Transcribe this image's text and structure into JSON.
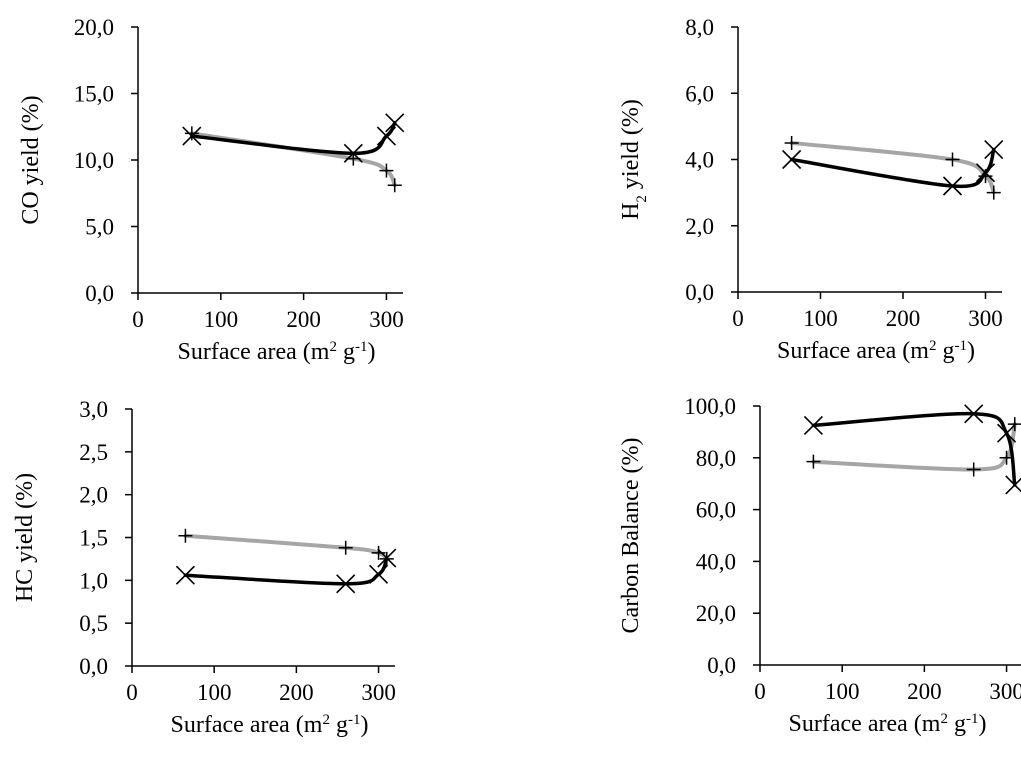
{
  "chart_data": [
    {
      "type": "scatter",
      "xlabel": "Surface area (m² g⁻¹)",
      "ylabel": "CO yield (%)",
      "xlim": [
        0,
        320
      ],
      "ylim": [
        0,
        20
      ],
      "x_ticks": [
        "0",
        "100",
        "200",
        "300"
      ],
      "y_ticks": [
        "0,0",
        "5,0",
        "10,0",
        "15,0",
        "20,0"
      ],
      "grid": false,
      "legend": "none",
      "series": [
        {
          "marker": "cross",
          "color": "#000000",
          "x": [
            65,
            260,
            300,
            310
          ],
          "y": [
            11.8,
            10.5,
            11.8,
            12.8
          ]
        },
        {
          "marker": "plus",
          "color": "#a6a6a6",
          "x": [
            65,
            260,
            300,
            310
          ],
          "y": [
            12.0,
            10.1,
            9.2,
            8.1
          ]
        }
      ]
    },
    {
      "type": "scatter",
      "xlabel": "Surface area (m² g⁻¹)",
      "ylabel": "H₂ yield (%)",
      "xlim": [
        0,
        320
      ],
      "ylim": [
        0,
        8
      ],
      "x_ticks": [
        "0",
        "100",
        "200",
        "300"
      ],
      "y_ticks": [
        "0,0",
        "2,0",
        "4,0",
        "6,0",
        "8,0"
      ],
      "grid": false,
      "legend": "none",
      "series": [
        {
          "marker": "cross",
          "color": "#000000",
          "x": [
            65,
            260,
            300,
            310
          ],
          "y": [
            4.0,
            3.2,
            3.6,
            4.3
          ]
        },
        {
          "marker": "plus",
          "color": "#a6a6a6",
          "x": [
            65,
            260,
            300,
            310
          ],
          "y": [
            4.5,
            4.0,
            3.5,
            3.0
          ]
        }
      ]
    },
    {
      "type": "scatter",
      "xlabel": "Surface area (m² g⁻¹)",
      "ylabel": "HC yield (%)",
      "xlim": [
        0,
        320
      ],
      "ylim": [
        0,
        3
      ],
      "x_ticks": [
        "0",
        "100",
        "200",
        "300"
      ],
      "y_ticks": [
        "0,0",
        "0,5",
        "1,0",
        "1,5",
        "2,0",
        "2,5",
        "3,0"
      ],
      "grid": false,
      "legend": "none",
      "series": [
        {
          "marker": "cross",
          "color": "#000000",
          "x": [
            65,
            260,
            300,
            310
          ],
          "y": [
            1.06,
            0.96,
            1.07,
            1.26
          ]
        },
        {
          "marker": "plus",
          "color": "#a6a6a6",
          "x": [
            65,
            260,
            300,
            310
          ],
          "y": [
            1.52,
            1.38,
            1.32,
            1.25
          ]
        }
      ]
    },
    {
      "type": "scatter",
      "xlabel": "Surface area (m² g⁻¹)",
      "ylabel": "Carbon Balance (%)",
      "xlim": [
        0,
        320
      ],
      "ylim": [
        0,
        100
      ],
      "x_ticks": [
        "0",
        "100",
        "200",
        "300"
      ],
      "y_ticks": [
        "0,0",
        "20,0",
        "40,0",
        "60,0",
        "80,0",
        "100,0"
      ],
      "grid": false,
      "legend": "none",
      "series": [
        {
          "marker": "cross",
          "color": "#000000",
          "x": [
            65,
            260,
            300,
            310
          ],
          "y": [
            92.5,
            97.0,
            89.5,
            69.5
          ]
        },
        {
          "marker": "plus",
          "color": "#a6a6a6",
          "x": [
            65,
            260,
            300,
            310
          ],
          "y": [
            78.5,
            75.5,
            80.0,
            93.0
          ]
        }
      ]
    }
  ]
}
